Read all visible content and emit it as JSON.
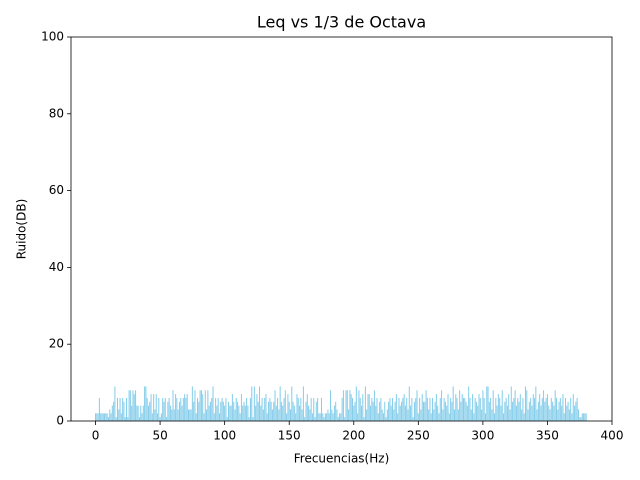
{
  "chart_data": {
    "type": "bar",
    "title": "Leq vs 1/3 de Octava",
    "x_label": "Frecuencias(Hz)",
    "y_label": "Ruido(DB)",
    "color": "#87ceeb",
    "x": [
      0,
      1,
      2,
      3,
      4,
      5,
      6,
      7,
      8,
      9,
      10,
      11,
      12,
      13,
      14,
      15,
      16,
      17,
      18,
      19,
      20,
      21,
      22,
      23,
      24,
      25,
      26,
      27,
      28,
      29,
      30,
      31,
      32,
      33,
      34,
      35,
      36,
      37,
      38,
      39,
      40,
      41,
      42,
      43,
      44,
      45,
      46,
      47,
      48,
      49,
      50,
      51,
      52,
      53,
      54,
      55,
      56,
      57,
      58,
      59,
      60,
      61,
      62,
      63,
      64,
      65,
      66,
      67,
      68,
      69,
      70,
      71,
      72,
      73,
      74,
      75,
      76,
      77,
      78,
      79,
      80,
      81,
      82,
      83,
      84,
      85,
      86,
      87,
      88,
      89,
      90,
      91,
      92,
      93,
      94,
      95,
      96,
      97,
      98,
      99,
      100,
      101,
      102,
      103,
      104,
      105,
      106,
      107,
      108,
      109,
      110,
      111,
      112,
      113,
      114,
      115,
      116,
      117,
      118,
      119,
      120,
      121,
      122,
      123,
      124,
      125,
      126,
      127,
      128,
      129,
      130,
      131,
      132,
      133,
      134,
      135,
      136,
      137,
      138,
      139,
      140,
      141,
      142,
      143,
      144,
      145,
      146,
      147,
      148,
      149,
      150,
      151,
      152,
      153,
      154,
      155,
      156,
      157,
      158,
      159,
      160,
      161,
      162,
      163,
      164,
      165,
      166,
      167,
      168,
      169,
      170,
      171,
      172,
      173,
      174,
      175,
      176,
      177,
      178,
      179,
      180,
      181,
      182,
      183,
      184,
      185,
      186,
      187,
      188,
      189,
      190,
      191,
      192,
      193,
      194,
      195,
      196,
      197,
      198,
      199,
      200,
      201,
      202,
      203,
      204,
      205,
      206,
      207,
      208,
      209,
      210,
      211,
      212,
      213,
      214,
      215,
      216,
      217,
      218,
      219,
      220,
      221,
      222,
      223,
      224,
      225,
      226,
      227,
      228,
      229,
      230,
      231,
      232,
      233,
      234,
      235,
      236,
      237,
      238,
      239,
      240,
      241,
      242,
      243,
      244,
      245,
      246,
      247,
      248,
      249,
      250,
      251,
      252,
      253,
      254,
      255,
      256,
      257,
      258,
      259,
      260,
      261,
      262,
      263,
      264,
      265,
      266,
      267,
      268,
      269,
      270,
      271,
      272,
      273,
      274,
      275,
      276,
      277,
      278,
      279,
      280,
      281,
      282,
      283,
      284,
      285,
      286,
      287,
      288,
      289,
      290,
      291,
      292,
      293,
      294,
      295,
      296,
      297,
      298,
      299,
      300,
      301,
      302,
      303,
      304,
      305,
      306,
      307,
      308,
      309,
      310,
      311,
      312,
      313,
      314,
      315,
      316,
      317,
      318,
      319,
      320,
      321,
      322,
      323,
      324,
      325,
      326,
      327,
      328,
      329,
      330,
      331,
      332,
      333,
      334,
      335,
      336,
      337,
      338,
      339,
      340,
      341,
      342,
      343,
      344,
      345,
      346,
      347,
      348,
      349,
      350,
      351,
      352,
      353,
      354,
      355,
      356,
      357,
      358,
      359,
      360,
      361,
      362,
      363,
      364,
      365,
      366,
      367,
      368,
      369,
      370,
      371,
      372,
      373,
      374,
      375,
      376,
      377,
      378,
      379,
      380
    ],
    "values": [
      2,
      2,
      2,
      6,
      2,
      2,
      2,
      2,
      2,
      2,
      1,
      3,
      2,
      4,
      5,
      9,
      1,
      6,
      3,
      6,
      2,
      6,
      5,
      1,
      6,
      1,
      8,
      8,
      4,
      8,
      7,
      8,
      4,
      4,
      1,
      4,
      2,
      4,
      9,
      9,
      6,
      4,
      5,
      7,
      2,
      7,
      3,
      7,
      2,
      6,
      1,
      2,
      6,
      5,
      6,
      1,
      5,
      6,
      4,
      3,
      8,
      3,
      7,
      6,
      3,
      5,
      6,
      4,
      6,
      7,
      6,
      7,
      3,
      3,
      3,
      9,
      5,
      8,
      2,
      6,
      5,
      8,
      8,
      7,
      2,
      8,
      3,
      8,
      4,
      5,
      6,
      9,
      2,
      6,
      4,
      6,
      2,
      5,
      6,
      5,
      4,
      6,
      1,
      5,
      4,
      4,
      7,
      5,
      3,
      6,
      5,
      4,
      2,
      7,
      4,
      5,
      4,
      6,
      4,
      1,
      6,
      9,
      1,
      9,
      4,
      7,
      5,
      9,
      4,
      6,
      3,
      6,
      7,
      2,
      5,
      6,
      5,
      3,
      5,
      8,
      4,
      6,
      3,
      9,
      5,
      4,
      6,
      8,
      2,
      7,
      5,
      3,
      9,
      5,
      4,
      2,
      7,
      6,
      4,
      6,
      3,
      9,
      1,
      5,
      7,
      4,
      3,
      6,
      2,
      6,
      1,
      5,
      6,
      2,
      2,
      6,
      2,
      1,
      2,
      2,
      3,
      2,
      8,
      3,
      2,
      4,
      5,
      3,
      1,
      2,
      2,
      6,
      8,
      1,
      8,
      8,
      3,
      8,
      7,
      6,
      4,
      5,
      9,
      2,
      8,
      6,
      4,
      7,
      1,
      9,
      3,
      7,
      7,
      4,
      6,
      5,
      8,
      4,
      6,
      2,
      5,
      6,
      3,
      2,
      5,
      1,
      3,
      5,
      6,
      4,
      6,
      3,
      5,
      7,
      2,
      6,
      4,
      5,
      6,
      7,
      4,
      6,
      3,
      9,
      4,
      6,
      1,
      5,
      6,
      8,
      2,
      6,
      3,
      7,
      5,
      5,
      8,
      6,
      3,
      6,
      2,
      6,
      3,
      5,
      7,
      4,
      2,
      6,
      8,
      3,
      6,
      5,
      4,
      7,
      2,
      6,
      5,
      9,
      3,
      7,
      6,
      3,
      8,
      5,
      7,
      6,
      6,
      5,
      4,
      9,
      6,
      3,
      7,
      2,
      6,
      5,
      4,
      7,
      6,
      3,
      8,
      6,
      2,
      9,
      9,
      5,
      6,
      3,
      8,
      2,
      6,
      4,
      7,
      6,
      4,
      8,
      2,
      5,
      6,
      4,
      7,
      3,
      9,
      5,
      6,
      8,
      4,
      6,
      5,
      7,
      3,
      6,
      2,
      9,
      8,
      3,
      5,
      6,
      4,
      7,
      6,
      9,
      3,
      5,
      7,
      4,
      6,
      8,
      5,
      6,
      7,
      4,
      3,
      6,
      5,
      4,
      8,
      6,
      3,
      5,
      6,
      4,
      7,
      2,
      6,
      4,
      5,
      3,
      6,
      2,
      7,
      4,
      5,
      6,
      3,
      1,
      1,
      2,
      2,
      2,
      2
    ],
    "xlim": [
      -19,
      400
    ],
    "xticks": [
      0,
      50,
      100,
      150,
      200,
      250,
      300,
      350,
      400
    ],
    "ylim": [
      0,
      100
    ],
    "yticks": [
      0,
      20,
      40,
      60,
      80,
      100
    ]
  }
}
